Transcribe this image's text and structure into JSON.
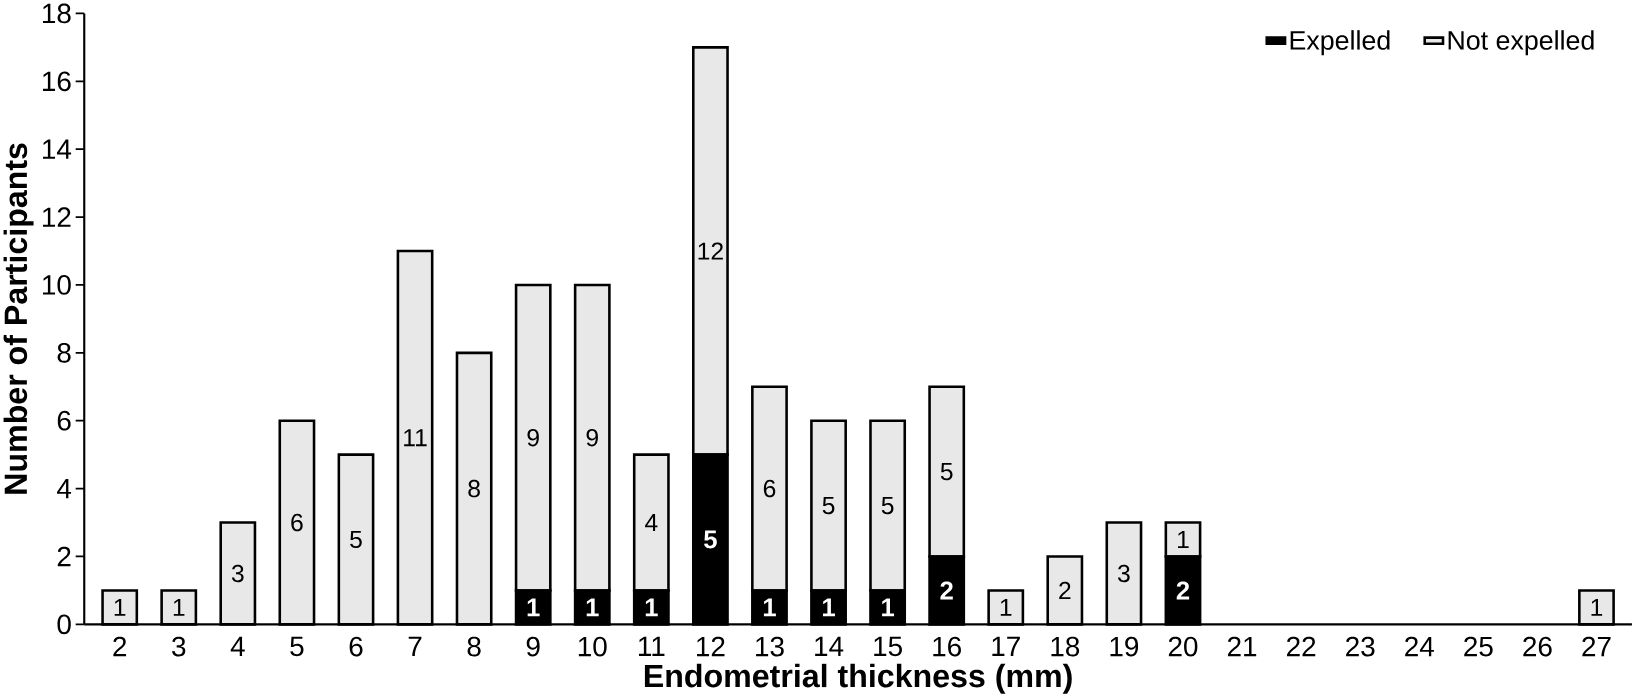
{
  "chart_data": {
    "type": "bar",
    "stacked": true,
    "xlabel": "Endometrial thickness (mm)",
    "ylabel": "Number of Participants",
    "categories": [
      "2",
      "3",
      "4",
      "5",
      "6",
      "7",
      "8",
      "9",
      "10",
      "11",
      "12",
      "13",
      "14",
      "15",
      "16",
      "17",
      "18",
      "19",
      "20",
      "21",
      "22",
      "23",
      "24",
      "25",
      "26",
      "27"
    ],
    "series": [
      {
        "name": "Expelled",
        "color": "#000000",
        "values": [
          0,
          0,
          0,
          0,
          0,
          0,
          0,
          1,
          1,
          1,
          5,
          1,
          1,
          1,
          2,
          0,
          0,
          0,
          2,
          0,
          0,
          0,
          0,
          0,
          0,
          0
        ],
        "value_labels": [
          null,
          null,
          null,
          null,
          null,
          null,
          null,
          "1",
          "1",
          "1",
          "5",
          "1",
          "1",
          "1",
          "2",
          null,
          null,
          null,
          "2",
          null,
          null,
          null,
          null,
          null,
          null,
          null
        ]
      },
      {
        "name": "Not expelled",
        "color": "#e8e8e8",
        "values": [
          1,
          1,
          3,
          6,
          5,
          11,
          8,
          9,
          9,
          4,
          12,
          6,
          5,
          5,
          5,
          1,
          2,
          3,
          1,
          0,
          0,
          0,
          0,
          0,
          0,
          1
        ],
        "value_labels": [
          "1",
          "1",
          "3",
          "6",
          "5",
          "11",
          "8",
          "9",
          "9",
          "4",
          "12",
          "6",
          "5",
          "5",
          "5",
          "1",
          "2",
          "3",
          "1",
          null,
          null,
          null,
          null,
          null,
          null,
          "1"
        ]
      }
    ],
    "ylim": [
      0,
      18
    ],
    "yticks": [
      0,
      2,
      4,
      6,
      8,
      10,
      12,
      14,
      16,
      18
    ],
    "legend": "top right"
  }
}
